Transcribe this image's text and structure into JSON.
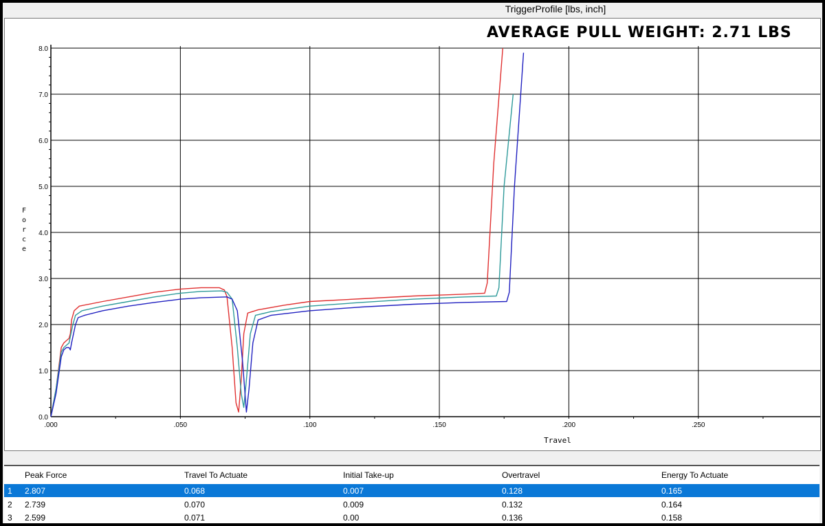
{
  "window": {
    "title": "TriggerProfile [lbs, inch]"
  },
  "overlay": {
    "headline": "AVERAGE PULL WEIGHT: 2.71 LBS"
  },
  "colors": {
    "series1": "#e03030",
    "series2": "#2e9a9a",
    "series3": "#2020c0",
    "selected_row": "#0a78d7",
    "grid": "#000000"
  },
  "chart_data": {
    "type": "line",
    "title": "TriggerProfile [lbs, inch]",
    "xlabel": "Travel",
    "ylabel": "Force",
    "xlim": [
      0,
      0.3
    ],
    "ylim": [
      0,
      8
    ],
    "x_ticks": [
      ".000",
      ".050",
      ".100",
      ".150",
      ".200",
      ".250"
    ],
    "y_ticks": [
      "0.0",
      "1.0",
      "2.0",
      "3.0",
      "4.0",
      "5.0",
      "6.0",
      "7.0",
      "8.0"
    ],
    "grid": true,
    "series": [
      {
        "color": "#e03030",
        "points": [
          [
            0,
            0
          ],
          [
            0.002,
            0.6
          ],
          [
            0.004,
            1.5
          ],
          [
            0.005,
            1.6
          ],
          [
            0.006,
            1.65
          ],
          [
            0.007,
            1.7
          ],
          [
            0.0075,
            1.8
          ],
          [
            0.008,
            2.1
          ],
          [
            0.009,
            2.3
          ],
          [
            0.011,
            2.4
          ],
          [
            0.02,
            2.5
          ],
          [
            0.03,
            2.6
          ],
          [
            0.04,
            2.7
          ],
          [
            0.05,
            2.77
          ],
          [
            0.058,
            2.8
          ],
          [
            0.065,
            2.8
          ],
          [
            0.067,
            2.75
          ],
          [
            0.068,
            2.6
          ],
          [
            0.07,
            1.5
          ],
          [
            0.0715,
            0.3
          ],
          [
            0.0725,
            0.1
          ],
          [
            0.0735,
            0.8
          ],
          [
            0.0745,
            1.8
          ],
          [
            0.076,
            2.25
          ],
          [
            0.08,
            2.32
          ],
          [
            0.09,
            2.42
          ],
          [
            0.1,
            2.5
          ],
          [
            0.12,
            2.56
          ],
          [
            0.14,
            2.62
          ],
          [
            0.16,
            2.66
          ],
          [
            0.1675,
            2.68
          ],
          [
            0.1685,
            2.9
          ],
          [
            0.171,
            5.5
          ],
          [
            0.1745,
            8.0
          ]
        ]
      },
      {
        "color": "#2e9a9a",
        "points": [
          [
            0,
            0
          ],
          [
            0.002,
            0.6
          ],
          [
            0.004,
            1.4
          ],
          [
            0.005,
            1.5
          ],
          [
            0.006,
            1.55
          ],
          [
            0.007,
            1.6
          ],
          [
            0.0085,
            2.0
          ],
          [
            0.0095,
            2.2
          ],
          [
            0.012,
            2.3
          ],
          [
            0.02,
            2.4
          ],
          [
            0.03,
            2.5
          ],
          [
            0.04,
            2.6
          ],
          [
            0.05,
            2.68
          ],
          [
            0.058,
            2.72
          ],
          [
            0.066,
            2.73
          ],
          [
            0.068,
            2.7
          ],
          [
            0.07,
            2.55
          ],
          [
            0.072,
            1.5
          ],
          [
            0.0735,
            0.5
          ],
          [
            0.0745,
            0.2
          ],
          [
            0.0755,
            0.8
          ],
          [
            0.077,
            1.8
          ],
          [
            0.079,
            2.2
          ],
          [
            0.085,
            2.28
          ],
          [
            0.1,
            2.4
          ],
          [
            0.12,
            2.48
          ],
          [
            0.14,
            2.55
          ],
          [
            0.16,
            2.6
          ],
          [
            0.172,
            2.62
          ],
          [
            0.173,
            2.8
          ],
          [
            0.175,
            5.0
          ],
          [
            0.1785,
            7.0
          ]
        ]
      },
      {
        "color": "#2020c0",
        "points": [
          [
            0,
            0
          ],
          [
            0.002,
            0.5
          ],
          [
            0.004,
            1.3
          ],
          [
            0.005,
            1.45
          ],
          [
            0.006,
            1.5
          ],
          [
            0.007,
            1.5
          ],
          [
            0.0075,
            1.45
          ],
          [
            0.008,
            1.6
          ],
          [
            0.0095,
            2.0
          ],
          [
            0.0105,
            2.15
          ],
          [
            0.013,
            2.2
          ],
          [
            0.02,
            2.3
          ],
          [
            0.03,
            2.4
          ],
          [
            0.04,
            2.48
          ],
          [
            0.05,
            2.55
          ],
          [
            0.058,
            2.58
          ],
          [
            0.068,
            2.6
          ],
          [
            0.07,
            2.55
          ],
          [
            0.072,
            2.3
          ],
          [
            0.074,
            1.2
          ],
          [
            0.0755,
            0.1
          ],
          [
            0.0765,
            0.6
          ],
          [
            0.078,
            1.6
          ],
          [
            0.08,
            2.1
          ],
          [
            0.085,
            2.2
          ],
          [
            0.1,
            2.3
          ],
          [
            0.12,
            2.38
          ],
          [
            0.14,
            2.44
          ],
          [
            0.16,
            2.48
          ],
          [
            0.176,
            2.5
          ],
          [
            0.177,
            2.7
          ],
          [
            0.179,
            5.0
          ],
          [
            0.1825,
            7.9
          ]
        ]
      }
    ]
  },
  "table": {
    "headers": [
      "Peak Force",
      "Travel To Actuate",
      "Initial Take-up",
      "Overtravel",
      "Energy To Actuate"
    ],
    "rows": [
      {
        "index": "1",
        "values": [
          "2.807",
          "0.068",
          "0.007",
          "0.128",
          "0.165"
        ]
      },
      {
        "index": "2",
        "values": [
          "2.739",
          "0.070",
          "0.009",
          "0.132",
          "0.164"
        ]
      },
      {
        "index": "3",
        "values": [
          "2.599",
          "0.071",
          "0.00",
          "0.136",
          "0.158"
        ]
      }
    ]
  }
}
